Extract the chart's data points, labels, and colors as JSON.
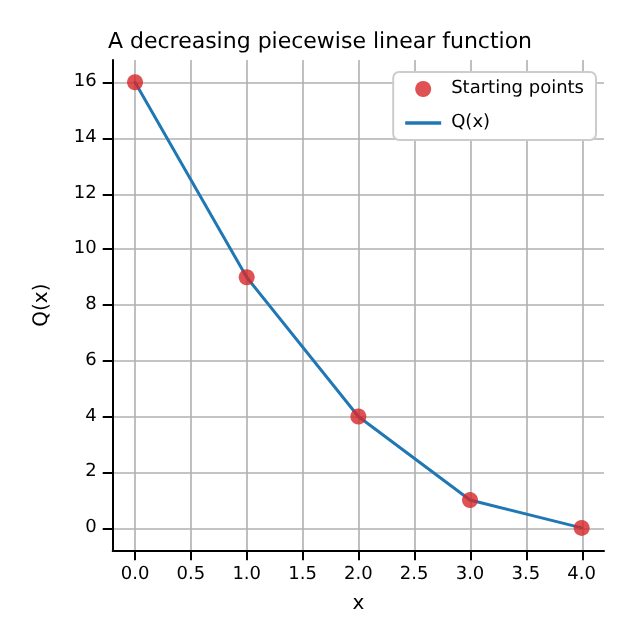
{
  "chart_data": {
    "type": "line",
    "title": "A decreasing piecewise linear function",
    "xlabel": "x",
    "ylabel": "Q(x)",
    "x": [
      0,
      1,
      2,
      3,
      4
    ],
    "series": [
      {
        "name": "Starting points",
        "type": "scatter",
        "color": "#d62728",
        "marker": "circle",
        "values": [
          16,
          9,
          4,
          1,
          0
        ]
      },
      {
        "name": "Q(x)",
        "color": "#1f77b4",
        "marker": "none",
        "line_style": "solid",
        "values": [
          16,
          9,
          4,
          1,
          0
        ]
      }
    ],
    "xlim": [
      -0.2,
      4.2
    ],
    "ylim": [
      -0.8,
      16.8
    ],
    "xticks": [
      {
        "value": 0,
        "label": "0.0"
      },
      {
        "value": 0.5,
        "label": "0.5"
      },
      {
        "value": 1,
        "label": "1.0"
      },
      {
        "value": 1.5,
        "label": "1.5"
      },
      {
        "value": 2,
        "label": "2.0"
      },
      {
        "value": 2.5,
        "label": "2.5"
      },
      {
        "value": 3,
        "label": "3.0"
      },
      {
        "value": 3.5,
        "label": "3.5"
      },
      {
        "value": 4,
        "label": "4.0"
      }
    ],
    "yticks": [
      0,
      2,
      4,
      6,
      8,
      10,
      12,
      14,
      16
    ],
    "grid": true,
    "legend": "top right"
  }
}
